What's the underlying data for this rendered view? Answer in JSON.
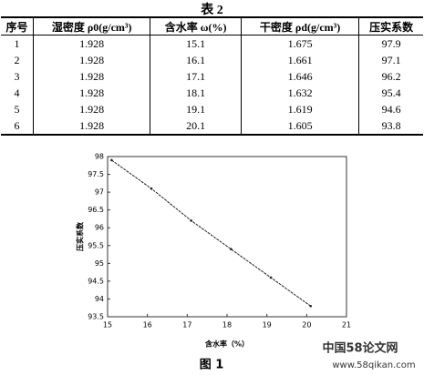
{
  "table": {
    "title": "表 2",
    "header": [
      "序号",
      "湿密度 ρ0(g/cm³)",
      "含水率 ω(%)",
      "干密度 ρd(g/cm³)",
      "压实系数"
    ],
    "rows": [
      [
        "1",
        "1.928",
        "15.1",
        "1.675",
        "97.9"
      ],
      [
        "2",
        "1.928",
        "16.1",
        "1.661",
        "97.1"
      ],
      [
        "3",
        "1.928",
        "17.1",
        "1.646",
        "96.2"
      ],
      [
        "4",
        "1.928",
        "18.1",
        "1.632",
        "95.4"
      ],
      [
        "5",
        "1.928",
        "19.1",
        "1.619",
        "94.6"
      ],
      [
        "6",
        "1.928",
        "20.1",
        "1.605",
        "93.8"
      ]
    ]
  },
  "chart_data": {
    "type": "line",
    "x": [
      15.1,
      16.1,
      17.1,
      18.1,
      19.1,
      20.1
    ],
    "values": [
      97.9,
      97.1,
      96.2,
      95.4,
      94.6,
      93.8
    ],
    "color": "#222222",
    "xlim": [
      15,
      21
    ],
    "xticks": [
      15,
      16,
      17,
      18,
      19,
      20,
      21
    ],
    "ylim": [
      93.5,
      98
    ],
    "yticks": [
      93.5,
      94,
      94.5,
      95,
      95.5,
      96,
      96.5,
      97,
      97.5,
      98
    ],
    "xlabel": "含水率（%）",
    "ylabel": "压实系数",
    "caption": "图 1"
  },
  "watermark": {
    "brand": "中国58论文网",
    "url": "www.58qikan.com"
  }
}
